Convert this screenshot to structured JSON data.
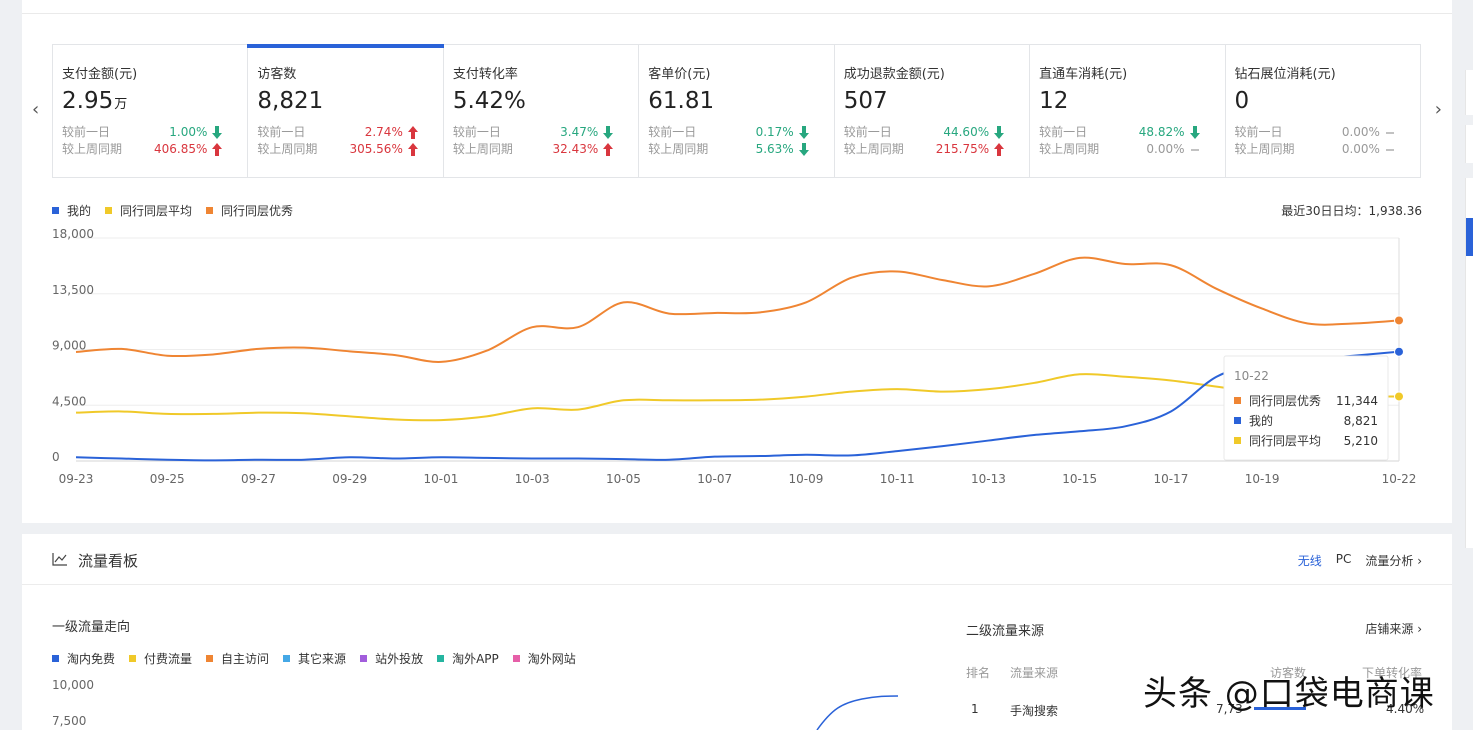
{
  "kpis": [
    {
      "title": "支付金额(元)",
      "value": "2.95",
      "unit": "万",
      "cmp": [
        {
          "label": "较前一日",
          "pct": "1.00%",
          "dir": "down"
        },
        {
          "label": "较上周同期",
          "pct": "406.85%",
          "dir": "up"
        }
      ]
    },
    {
      "title": "访客数",
      "value": "8,821",
      "unit": "",
      "cmp": [
        {
          "label": "较前一日",
          "pct": "2.74%",
          "dir": "up"
        },
        {
          "label": "较上周同期",
          "pct": "305.56%",
          "dir": "up"
        }
      ]
    },
    {
      "title": "支付转化率",
      "value": "5.42%",
      "unit": "",
      "cmp": [
        {
          "label": "较前一日",
          "pct": "3.47%",
          "dir": "down"
        },
        {
          "label": "较上周同期",
          "pct": "32.43%",
          "dir": "up"
        }
      ]
    },
    {
      "title": "客单价(元)",
      "value": "61.81",
      "unit": "",
      "cmp": [
        {
          "label": "较前一日",
          "pct": "0.17%",
          "dir": "down"
        },
        {
          "label": "较上周同期",
          "pct": "5.63%",
          "dir": "down"
        }
      ]
    },
    {
      "title": "成功退款金额(元)",
      "value": "507",
      "unit": "",
      "cmp": [
        {
          "label": "较前一日",
          "pct": "44.60%",
          "dir": "down"
        },
        {
          "label": "较上周同期",
          "pct": "215.75%",
          "dir": "up"
        }
      ]
    },
    {
      "title": "直通车消耗(元)",
      "value": "12",
      "unit": "",
      "cmp": [
        {
          "label": "较前一日",
          "pct": "48.82%",
          "dir": "down"
        },
        {
          "label": "较上周同期",
          "pct": "0.00%",
          "dir": "flat"
        }
      ]
    },
    {
      "title": "钻石展位消耗(元)",
      "value": "0",
      "unit": "",
      "cmp": [
        {
          "label": "较前一日",
          "pct": "0.00%",
          "dir": "flat"
        },
        {
          "label": "较上周同期",
          "pct": "0.00%",
          "dir": "flat"
        }
      ]
    }
  ],
  "colors": {
    "mine": "#2a62d8",
    "avg": "#f0c929",
    "excellent": "#ef8533",
    "up": "#d9363e",
    "down": "#27a77f"
  },
  "avg_note": "最近30日日均：1,938.36",
  "chart_data": {
    "type": "line",
    "legend": [
      "我的",
      "同行同层平均",
      "同行同层优秀"
    ],
    "yticks": [
      "18,000",
      "13,500",
      "9,000",
      "4,500",
      "0"
    ],
    "ylim": [
      0,
      18000
    ],
    "xtick_labels": [
      "09-23",
      "09-25",
      "09-27",
      "09-29",
      "10-01",
      "10-03",
      "10-05",
      "10-07",
      "10-09",
      "10-11",
      "10-13",
      "10-15",
      "10-17",
      "10-19",
      "10-22"
    ],
    "x_days": [
      "09-23",
      "09-24",
      "09-25",
      "09-26",
      "09-27",
      "09-28",
      "09-29",
      "09-30",
      "10-01",
      "10-02",
      "10-03",
      "10-04",
      "10-05",
      "10-06",
      "10-07",
      "10-08",
      "10-09",
      "10-10",
      "10-11",
      "10-12",
      "10-13",
      "10-14",
      "10-15",
      "10-16",
      "10-17",
      "10-18",
      "10-19",
      "10-20",
      "10-21",
      "10-22"
    ],
    "series": [
      {
        "name": "同行同层优秀",
        "color": "#ef8533",
        "values": [
          8800,
          9050,
          8500,
          8600,
          9050,
          9150,
          8850,
          8550,
          8000,
          8900,
          10800,
          10800,
          12800,
          11900,
          11950,
          12000,
          12800,
          14800,
          15300,
          14600,
          14100,
          15100,
          16400,
          15900,
          15800,
          13900,
          12300,
          11100,
          11100,
          11344
        ]
      },
      {
        "name": "同行同层平均",
        "color": "#f0c929",
        "values": [
          3900,
          4000,
          3800,
          3800,
          3900,
          3850,
          3600,
          3350,
          3300,
          3600,
          4250,
          4150,
          4900,
          4900,
          4900,
          4950,
          5200,
          5600,
          5800,
          5600,
          5800,
          6300,
          7000,
          6800,
          6500,
          6000,
          5500,
          5200,
          5200,
          5210
        ]
      },
      {
        "name": "我的",
        "color": "#2a62d8",
        "values": [
          300,
          200,
          100,
          50,
          100,
          100,
          300,
          200,
          300,
          250,
          200,
          200,
          150,
          100,
          350,
          400,
          500,
          450,
          800,
          1200,
          1650,
          2100,
          2400,
          2800,
          4000,
          6800,
          7900,
          8200,
          8500,
          8821
        ]
      }
    ],
    "tooltip": {
      "date": "10-22",
      "rows": [
        {
          "name": "同行同层优秀",
          "value": "11,344",
          "color": "#ef8533"
        },
        {
          "name": "我的",
          "value": "8,821",
          "color": "#2a62d8"
        },
        {
          "name": "同行同层平均",
          "value": "5,210",
          "color": "#f0c929"
        }
      ]
    }
  },
  "flow": {
    "title": "流量看板",
    "links": [
      "无线",
      "PC",
      "流量分析"
    ],
    "level1_title": "一级流量走向",
    "legend": [
      {
        "name": "淘内免费",
        "color": "#2a62d8"
      },
      {
        "name": "付费流量",
        "color": "#f0c929"
      },
      {
        "name": "自主访问",
        "color": "#ef8533"
      },
      {
        "name": "其它来源",
        "color": "#45a8e6"
      },
      {
        "name": "站外投放",
        "color": "#a25ddc"
      },
      {
        "name": "淘外APP",
        "color": "#25b5a0"
      },
      {
        "name": "淘外网站",
        "color": "#e65fa8"
      }
    ],
    "yticks": [
      "10,000",
      "7,500"
    ],
    "level2_title": "二级流量来源",
    "shop_source": "店铺来源",
    "table_headers": [
      "排名",
      "流量来源",
      "访客数",
      "下单转化率"
    ],
    "row1": {
      "rank": "1",
      "source": "手淘搜索",
      "visitors": "7,73",
      "conv": "4.40%"
    }
  },
  "watermark": "头条 @口袋电商课"
}
